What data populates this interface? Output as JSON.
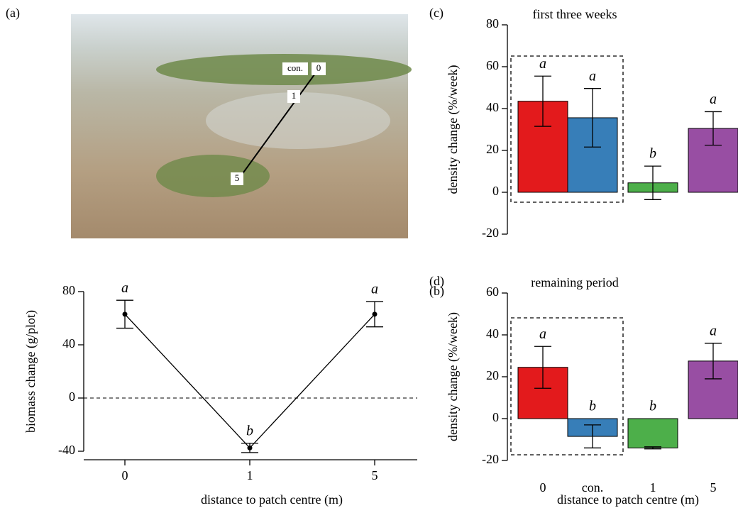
{
  "photo": {
    "panel_label": "(a)",
    "labels": [
      "con.",
      "0",
      "1",
      "5"
    ]
  },
  "chart_data": [
    {
      "type": "line",
      "panel_label": "(b)",
      "categories": [
        "0",
        "1",
        "5"
      ],
      "values": [
        63,
        -37.5,
        63
      ],
      "errors": [
        10.5,
        3.5,
        9.5
      ],
      "letters": [
        "a",
        "b",
        "a"
      ],
      "ylim": [
        -40,
        80
      ],
      "yticks": [
        -40,
        0,
        40,
        80
      ],
      "ylabel": "biomass change (g/plot)",
      "xlabel": "distance to patch centre (m)",
      "color": "#000000",
      "reference_line": 0
    },
    {
      "type": "bar",
      "panel_label": "(c)",
      "title": "first three weeks",
      "values": [
        43.5,
        35.6,
        4.5,
        30.5
      ],
      "errors": [
        12,
        14,
        8,
        8
      ],
      "letters": [
        "a",
        "a",
        "b",
        "a"
      ],
      "colors": [
        "#e31a1c",
        "#377eb8",
        "#4daf4a",
        "#984ea3"
      ],
      "ylim": [
        -20,
        80
      ],
      "yticks": [
        -20,
        0,
        20,
        40,
        60,
        80
      ],
      "ylabel": "density change (%/week)"
    },
    {
      "type": "bar",
      "panel_label": "(d)",
      "title": "remaining period",
      "categories": [
        "0",
        "con.",
        "1",
        "5"
      ],
      "values": [
        24.5,
        -8.5,
        -14,
        27.5
      ],
      "errors": [
        10,
        5.5,
        0.5,
        8.5
      ],
      "letters": [
        "a",
        "b",
        "b",
        "a"
      ],
      "colors": [
        "#e31a1c",
        "#377eb8",
        "#4daf4a",
        "#984ea3"
      ],
      "ylim": [
        -20,
        60
      ],
      "yticks": [
        -20,
        0,
        20,
        40,
        60
      ],
      "ylabel": "density change (%/week)",
      "xlabel": "distance to patch centre (m)"
    }
  ]
}
